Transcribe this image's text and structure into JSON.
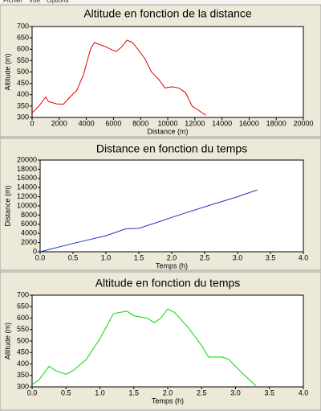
{
  "menu": [
    "Fichier",
    "Vue",
    "Options"
  ],
  "chart_data": [
    {
      "type": "line",
      "title": "Altitude en fonction de la distance",
      "xlabel": "Distance (m)",
      "ylabel": "Altitude (m)",
      "color": "#e00000",
      "x": [
        0,
        500,
        1000,
        1200,
        1800,
        2300,
        2800,
        3300,
        3800,
        4300,
        4600,
        5000,
        5500,
        5800,
        6200,
        6600,
        7000,
        7400,
        7800,
        8300,
        8800,
        9300,
        9800,
        10300,
        10800,
        11300,
        11800,
        12300,
        12800
      ],
      "values": [
        320,
        350,
        390,
        370,
        360,
        358,
        390,
        420,
        490,
        600,
        630,
        620,
        610,
        600,
        590,
        610,
        640,
        630,
        600,
        560,
        500,
        470,
        430,
        435,
        430,
        410,
        350,
        330,
        310
      ],
      "xlim": [
        0,
        20000
      ],
      "xticks": [
        0,
        2000,
        4000,
        6000,
        8000,
        10000,
        12000,
        14000,
        16000,
        18000,
        20000
      ],
      "ylim": [
        300,
        700
      ],
      "yticks": [
        300,
        350,
        400,
        450,
        500,
        550,
        600,
        650,
        700
      ]
    },
    {
      "type": "line",
      "title": "Distance en fonction du temps",
      "xlabel": "Temps (h)",
      "ylabel": "Distance (m)",
      "color": "#2030c0",
      "x": [
        0,
        0.5,
        1.0,
        1.3,
        1.5,
        1.8,
        2.0,
        2.5,
        3.0,
        3.3
      ],
      "values": [
        0,
        1800,
        3500,
        5000,
        5100,
        6500,
        7500,
        9800,
        12000,
        13500
      ],
      "xlim": [
        0,
        4
      ],
      "xticks": [
        {
          "value": 0,
          "label": "0.0"
        },
        0.5,
        {
          "value": 1,
          "label": "1.0"
        },
        1.5,
        {
          "value": 2,
          "label": "2.0"
        },
        2.5,
        {
          "value": 3,
          "label": "3.0"
        },
        3.5,
        {
          "value": 4,
          "label": "4.0"
        }
      ],
      "ylim": [
        0,
        20000
      ],
      "yticks": [
        0,
        2000,
        4000,
        6000,
        8000,
        10000,
        12000,
        14000,
        16000,
        18000,
        20000
      ]
    },
    {
      "type": "line",
      "title": "Altitude en fonction du temps",
      "xlabel": "Temps (h)",
      "ylabel": "Altitude (m)",
      "color": "#00d800",
      "x": [
        0,
        0.1,
        0.25,
        0.35,
        0.5,
        0.6,
        0.8,
        1.0,
        1.2,
        1.4,
        1.5,
        1.7,
        1.8,
        1.9,
        2.0,
        2.1,
        2.3,
        2.5,
        2.6,
        2.8,
        2.9,
        3.1,
        3.3
      ],
      "values": [
        310,
        330,
        390,
        370,
        355,
        370,
        420,
        510,
        620,
        630,
        610,
        600,
        580,
        600,
        640,
        625,
        560,
        480,
        430,
        430,
        420,
        360,
        305
      ],
      "xlim": [
        0,
        4
      ],
      "xticks": [
        {
          "value": 0,
          "label": "0.0"
        },
        0.5,
        {
          "value": 1,
          "label": "1.0"
        },
        1.5,
        {
          "value": 2,
          "label": "2.0"
        },
        2.5,
        {
          "value": 3,
          "label": "3.0"
        },
        3.5,
        {
          "value": 4,
          "label": "4.0"
        }
      ],
      "ylim": [
        300,
        700
      ],
      "yticks": [
        300,
        350,
        400,
        450,
        500,
        550,
        600,
        650,
        700
      ]
    }
  ]
}
